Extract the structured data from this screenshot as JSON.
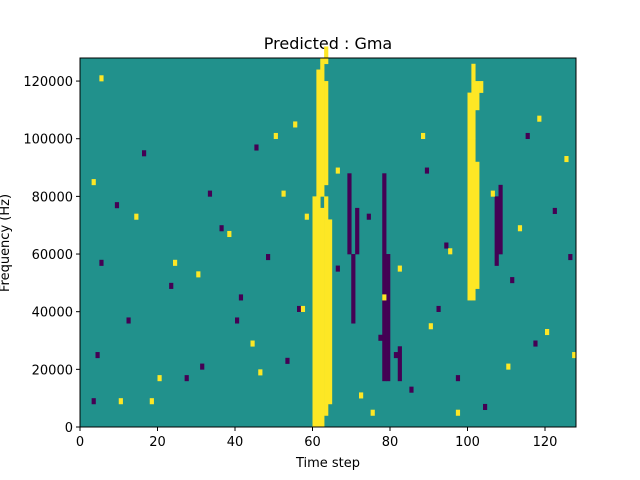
{
  "chart_data": {
    "type": "heatmap",
    "title": "Predicted : Gma",
    "xlabel": "Time step",
    "ylabel": "Frequency (Hz)",
    "xlim": [
      0,
      128
    ],
    "ylim": [
      0,
      128000
    ],
    "xticks": [
      0,
      20,
      40,
      60,
      80,
      100,
      120
    ],
    "xtick_labels": [
      "0",
      "20",
      "40",
      "60",
      "80",
      "100",
      "120"
    ],
    "yticks": [
      0,
      20000,
      40000,
      60000,
      80000,
      100000,
      120000
    ],
    "ytick_labels": [
      "0",
      "20000",
      "40000",
      "60000",
      "80000",
      "100000",
      "120000"
    ],
    "grid": false,
    "colormap": "viridis",
    "colors": {
      "background_value": "#21918c",
      "high_value": "#fde725",
      "low_value": "#440154"
    },
    "n_time_steps": 128,
    "n_frequency_bins": 64,
    "bin_height_hz": 2000,
    "high_value_runs": [
      [
        60,
        0,
        40
      ],
      [
        61,
        0,
        40
      ],
      [
        62,
        0,
        38
      ],
      [
        63,
        2,
        40
      ],
      [
        64,
        4,
        36
      ],
      [
        61,
        40,
        62
      ],
      [
        62,
        40,
        62
      ],
      [
        63,
        42,
        60
      ],
      [
        62,
        62,
        64
      ],
      [
        63,
        63,
        66
      ],
      [
        100,
        22,
        50
      ],
      [
        101,
        22,
        50
      ],
      [
        102,
        24,
        46
      ],
      [
        100,
        50,
        58
      ],
      [
        101,
        50,
        60
      ],
      [
        102,
        55,
        60
      ],
      [
        101,
        60,
        63
      ],
      [
        103,
        58,
        60
      ]
    ],
    "high_value_cells": [
      [
        5,
        60
      ],
      [
        10,
        4
      ],
      [
        20,
        8
      ],
      [
        30,
        26
      ],
      [
        50,
        50
      ],
      [
        55,
        52
      ],
      [
        57,
        20
      ],
      [
        66,
        44
      ],
      [
        72,
        5
      ],
      [
        75,
        2
      ],
      [
        88,
        50
      ],
      [
        95,
        30
      ],
      [
        97,
        2
      ],
      [
        110,
        10
      ],
      [
        118,
        53
      ],
      [
        125,
        46
      ],
      [
        3,
        42
      ],
      [
        14,
        36
      ],
      [
        24,
        28
      ],
      [
        38,
        33
      ],
      [
        44,
        14
      ],
      [
        52,
        40
      ],
      [
        58,
        36
      ],
      [
        78,
        22
      ],
      [
        82,
        27
      ],
      [
        90,
        17
      ],
      [
        106,
        40
      ],
      [
        113,
        34
      ],
      [
        120,
        16
      ],
      [
        127,
        12
      ],
      [
        18,
        4
      ],
      [
        46,
        9
      ]
    ],
    "low_value_runs": [
      [
        78,
        8,
        44
      ],
      [
        79,
        8,
        30
      ],
      [
        69,
        30,
        44
      ],
      [
        70,
        18,
        30
      ],
      [
        71,
        30,
        38
      ],
      [
        107,
        28,
        40
      ],
      [
        108,
        30,
        42
      ],
      [
        82,
        8,
        14
      ]
    ],
    "low_value_cells": [
      [
        3,
        4
      ],
      [
        4,
        12
      ],
      [
        5,
        28
      ],
      [
        9,
        38
      ],
      [
        12,
        18
      ],
      [
        16,
        47
      ],
      [
        23,
        24
      ],
      [
        27,
        8
      ],
      [
        31,
        10
      ],
      [
        33,
        40
      ],
      [
        36,
        34
      ],
      [
        40,
        18
      ],
      [
        41,
        22
      ],
      [
        45,
        48
      ],
      [
        48,
        29
      ],
      [
        53,
        11
      ],
      [
        56,
        20
      ],
      [
        66,
        27
      ],
      [
        74,
        36
      ],
      [
        77,
        15
      ],
      [
        81,
        12
      ],
      [
        85,
        6
      ],
      [
        89,
        44
      ],
      [
        92,
        20
      ],
      [
        94,
        31
      ],
      [
        97,
        8
      ],
      [
        104,
        3
      ],
      [
        111,
        25
      ],
      [
        115,
        50
      ],
      [
        117,
        14
      ],
      [
        122,
        37
      ],
      [
        126,
        29
      ]
    ]
  }
}
